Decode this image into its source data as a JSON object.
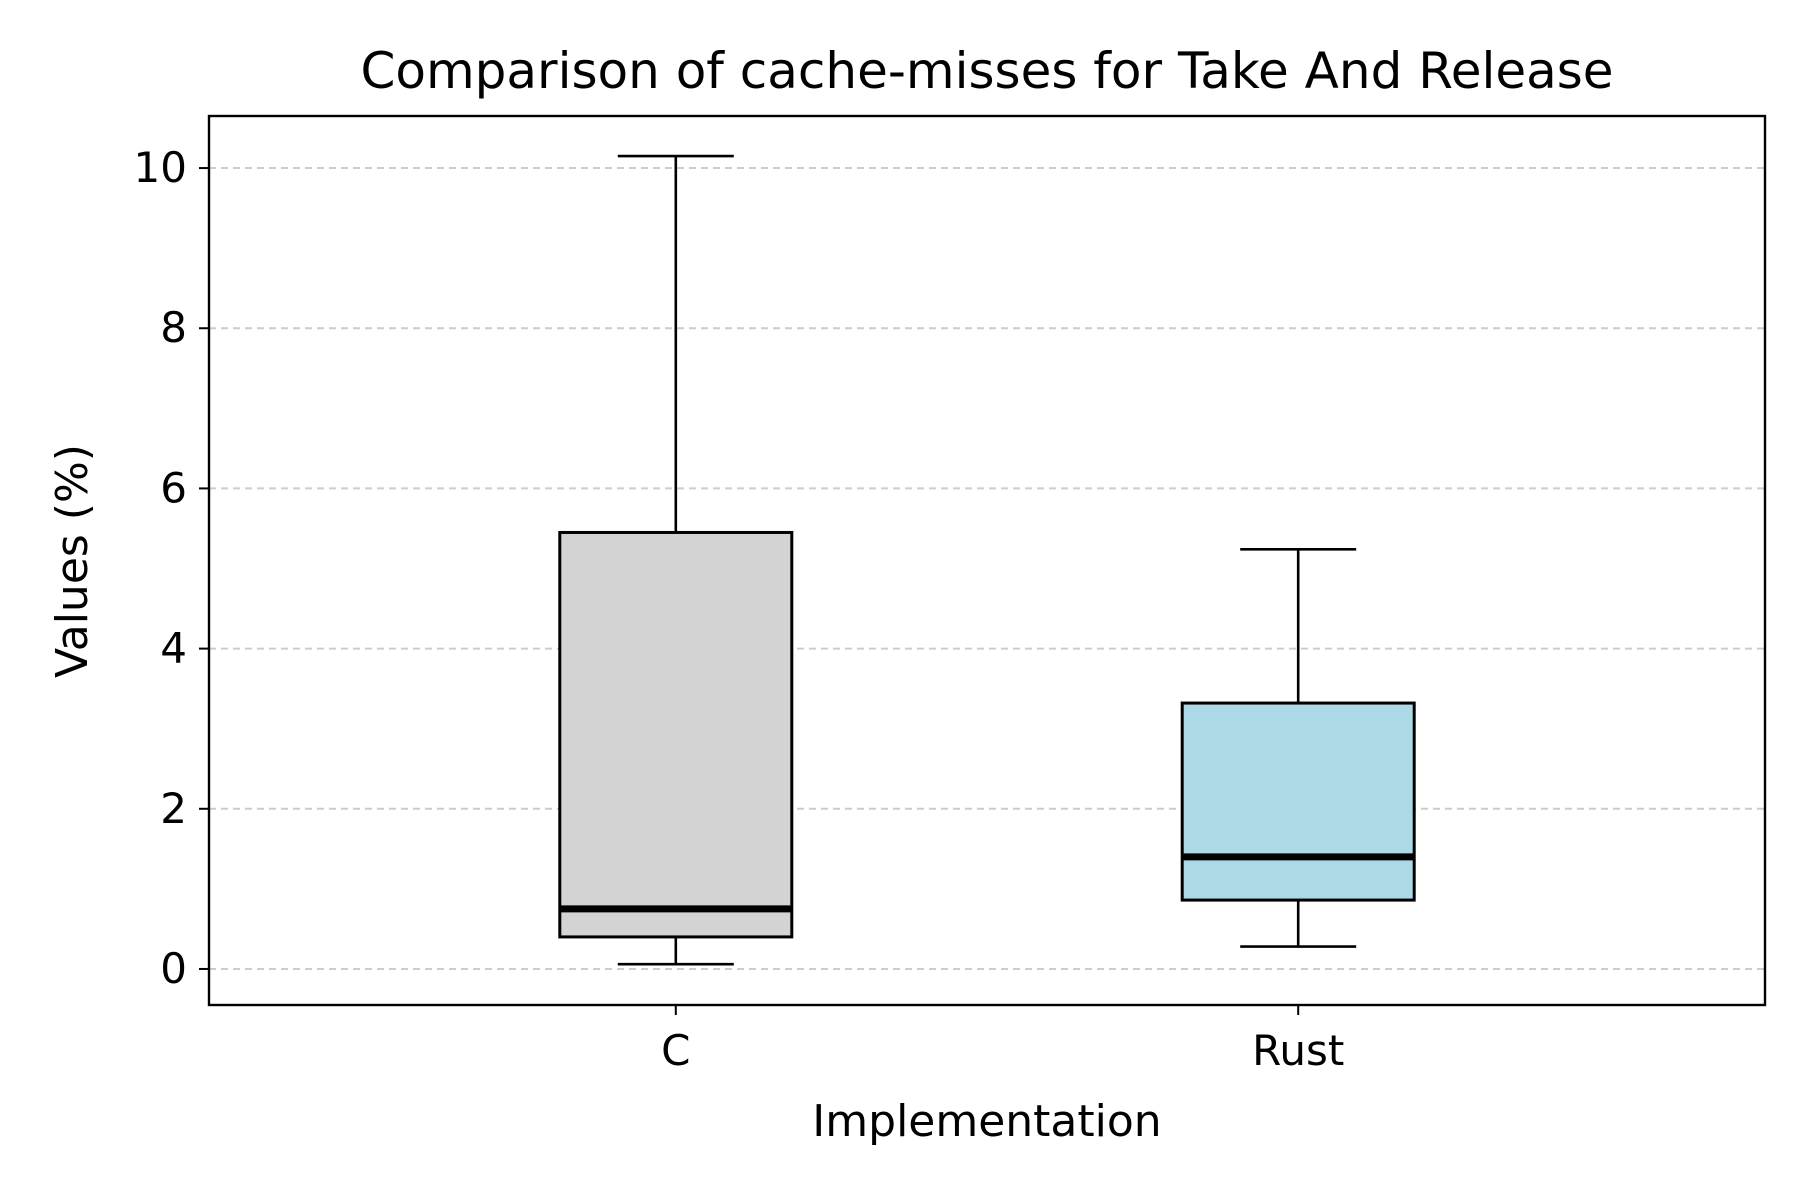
{
  "chart_data": {
    "type": "box",
    "title": "Comparison of cache-misses for Take And Release",
    "xlabel": "Implementation",
    "ylabel": "Values (%)",
    "categories": [
      "C",
      "Rust"
    ],
    "boxes": [
      {
        "name": "C",
        "whisker_low": 0.06,
        "q1": 0.4,
        "median": 0.75,
        "q3": 5.45,
        "whisker_high": 10.15,
        "color": "#d3d3d3"
      },
      {
        "name": "Rust",
        "whisker_low": 0.28,
        "q1": 0.86,
        "median": 1.4,
        "q3": 3.32,
        "whisker_high": 5.24,
        "color": "#add8e6"
      }
    ],
    "ylim": [
      -0.45,
      10.65
    ],
    "yticks": [
      0,
      2,
      4,
      6,
      8,
      10
    ],
    "grid": {
      "y": true,
      "x": false,
      "style": "dashed",
      "color": "#cccccc"
    },
    "median_color": "#000000"
  }
}
